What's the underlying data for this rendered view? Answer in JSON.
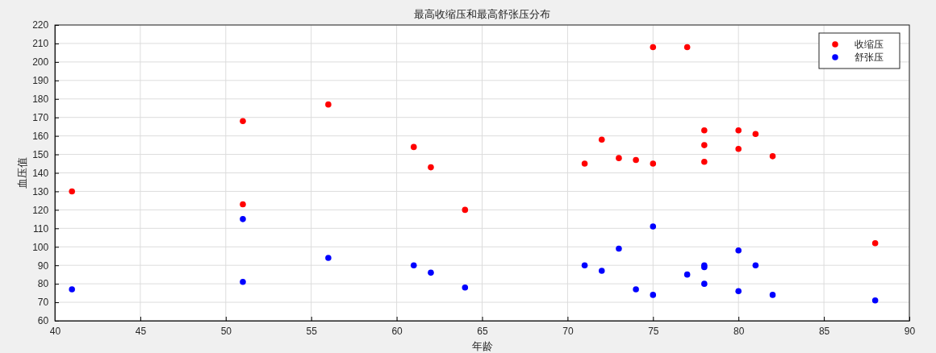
{
  "chart_data": {
    "type": "scatter",
    "title": "最高收缩压和最高舒张压分布",
    "xlabel": "年龄",
    "ylabel": "血压值",
    "x": [
      41,
      51,
      51,
      56,
      61,
      62,
      64,
      71,
      72,
      73,
      74,
      75,
      75,
      77,
      78,
      78,
      78,
      80,
      80,
      81,
      82,
      88
    ],
    "series": [
      {
        "name": "收缩压",
        "color": "#ff0000",
        "values": [
          130,
          168,
          123,
          177,
          154,
          143,
          120,
          145,
          158,
          148,
          147,
          208,
          145,
          208,
          163,
          155,
          146,
          163,
          153,
          161,
          149,
          102
        ]
      },
      {
        "name": "舒张压",
        "color": "#0000ff",
        "values": [
          77,
          115,
          81,
          94,
          90,
          86,
          78,
          90,
          87,
          99,
          77,
          111,
          74,
          85,
          90,
          89,
          80,
          98,
          76,
          90,
          74,
          71
        ]
      }
    ],
    "xlim": [
      40,
      90
    ],
    "xticks": [
      40,
      45,
      50,
      55,
      60,
      65,
      70,
      75,
      80,
      85,
      90
    ],
    "ylim": [
      60,
      220
    ],
    "yticks": [
      60,
      70,
      80,
      90,
      100,
      110,
      120,
      130,
      140,
      150,
      160,
      170,
      180,
      190,
      200,
      210,
      220
    ],
    "grid": true,
    "legend": "top right",
    "marker": "circle"
  }
}
